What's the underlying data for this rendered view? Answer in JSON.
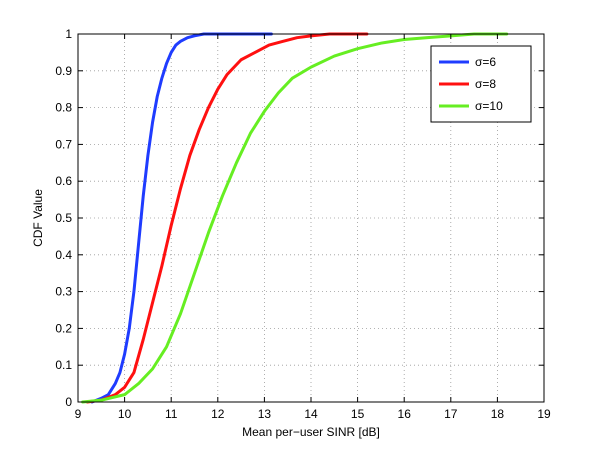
{
  "chart_data": {
    "type": "line",
    "title": "",
    "xlabel": "Mean per−user SINR [dB]",
    "ylabel": "CDF Value",
    "xlim": [
      9,
      19
    ],
    "ylim": [
      0,
      1
    ],
    "xticks": [
      9,
      10,
      11,
      12,
      13,
      14,
      15,
      16,
      17,
      18,
      19
    ],
    "yticks": [
      0,
      0.1,
      0.2,
      0.3,
      0.4,
      0.5,
      0.6,
      0.7,
      0.8,
      0.9,
      1
    ],
    "xtick_labels": [
      "9",
      "10",
      "11",
      "12",
      "13",
      "14",
      "15",
      "16",
      "17",
      "18",
      "19"
    ],
    "ytick_labels": [
      "0",
      "0.1",
      "0.2",
      "0.3",
      "0.4",
      "0.5",
      "0.6",
      "0.7",
      "0.8",
      "0.9",
      "1"
    ],
    "grid": true,
    "legend_position": "top-right",
    "series": [
      {
        "name": "σ=6",
        "color": "#1f3cff",
        "x": [
          9.3,
          9.5,
          9.65,
          9.8,
          9.9,
          10.0,
          10.1,
          10.2,
          10.3,
          10.4,
          10.5,
          10.6,
          10.7,
          10.8,
          10.9,
          11.0,
          11.1,
          11.2,
          11.35,
          11.5,
          11.7,
          11.9,
          12.2,
          12.6,
          13.15
        ],
        "y": [
          0.0,
          0.01,
          0.02,
          0.05,
          0.08,
          0.13,
          0.2,
          0.3,
          0.43,
          0.56,
          0.67,
          0.76,
          0.83,
          0.88,
          0.92,
          0.95,
          0.97,
          0.98,
          0.99,
          0.995,
          1.0,
          1.0,
          1.0,
          1.0,
          1.0
        ]
      },
      {
        "name": "σ=8",
        "color": "#ff1010",
        "x": [
          9.2,
          9.5,
          9.8,
          10.0,
          10.2,
          10.4,
          10.6,
          10.8,
          11.0,
          11.2,
          11.4,
          11.6,
          11.8,
          12.0,
          12.2,
          12.5,
          12.8,
          13.1,
          13.4,
          13.7,
          14.0,
          14.4,
          14.8,
          15.2
        ],
        "y": [
          0.0,
          0.005,
          0.02,
          0.04,
          0.08,
          0.17,
          0.27,
          0.37,
          0.48,
          0.58,
          0.67,
          0.74,
          0.8,
          0.85,
          0.89,
          0.93,
          0.95,
          0.97,
          0.98,
          0.99,
          0.995,
          1.0,
          1.0,
          1.0
        ]
      },
      {
        "name": "σ=10",
        "color": "#66ee22",
        "x": [
          9.1,
          9.5,
          10.0,
          10.3,
          10.6,
          10.9,
          11.2,
          11.5,
          11.8,
          12.1,
          12.4,
          12.7,
          13.0,
          13.3,
          13.6,
          14.0,
          14.5,
          15.0,
          15.5,
          16.0,
          16.5,
          17.0,
          17.5,
          18.2
        ],
        "y": [
          0.0,
          0.005,
          0.02,
          0.05,
          0.09,
          0.15,
          0.24,
          0.35,
          0.46,
          0.56,
          0.65,
          0.73,
          0.79,
          0.84,
          0.88,
          0.91,
          0.94,
          0.96,
          0.975,
          0.985,
          0.99,
          0.995,
          1.0,
          1.0
        ]
      }
    ]
  }
}
